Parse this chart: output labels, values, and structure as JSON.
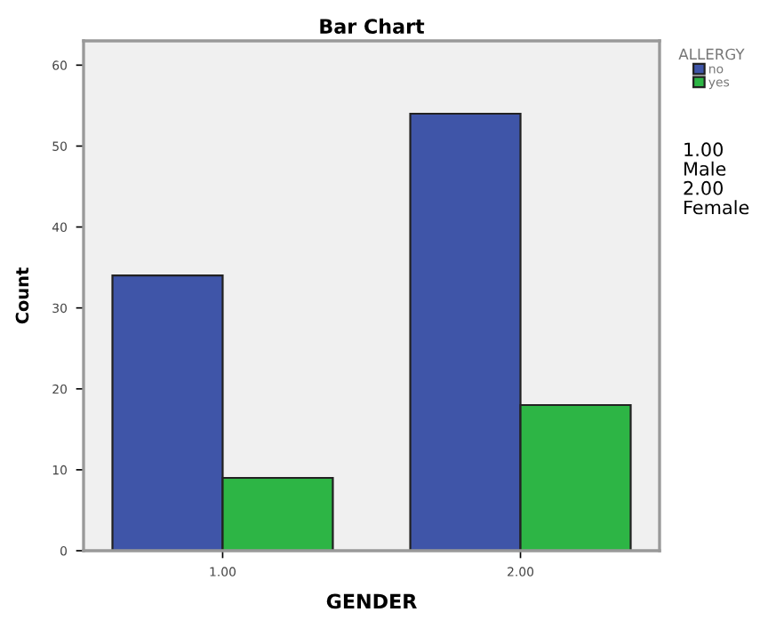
{
  "chart_data": {
    "type": "bar",
    "title": "Bar Chart",
    "xlabel": "GENDER",
    "ylabel": "Count",
    "legend_title": "ALLERGY",
    "categories": [
      "1.00",
      "2.00"
    ],
    "series": [
      {
        "name": "no",
        "color": "#3f55a8",
        "values": [
          34,
          54
        ]
      },
      {
        "name": "yes",
        "color": "#2db545",
        "values": [
          9,
          18
        ]
      }
    ],
    "ylim": [
      0,
      63
    ],
    "yticks": [
      0,
      10,
      20,
      30,
      40,
      50,
      60
    ],
    "grid": false,
    "legend": "top right",
    "annotations": [
      "1.00\nMale\n2.00\nFemale"
    ]
  }
}
